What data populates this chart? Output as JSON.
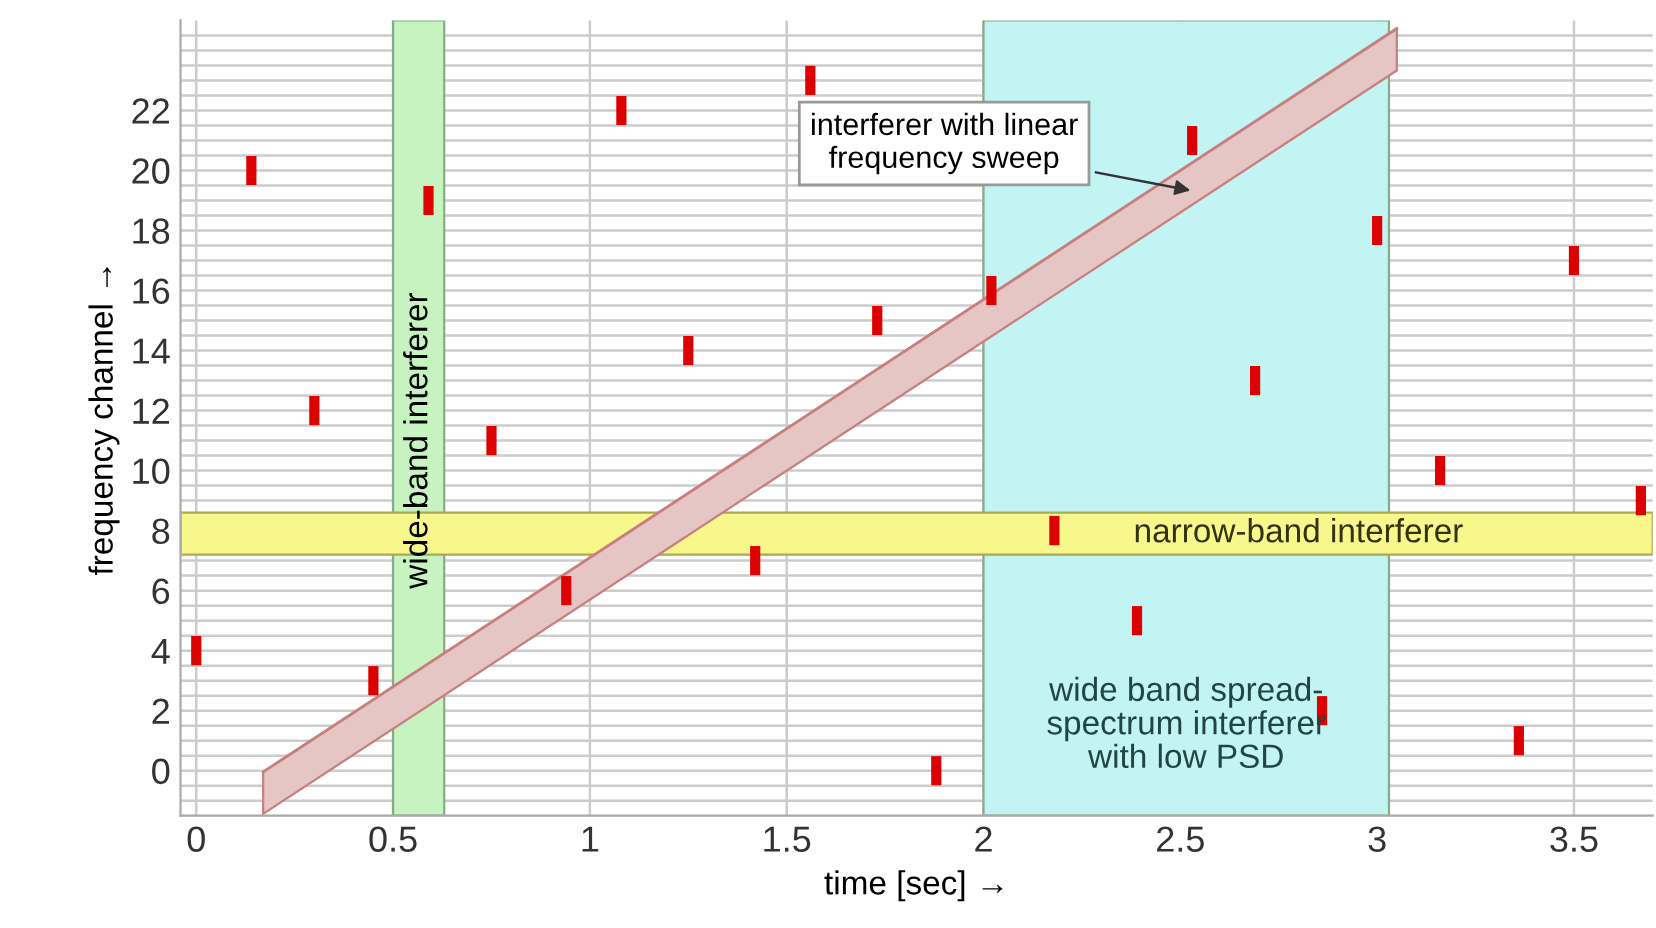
{
  "chart_data": {
    "type": "scatter",
    "xlabel": "time [sec] →",
    "ylabel": "frequency channel →",
    "series": [
      {
        "type": "line",
        "color": "#c87f7f",
        "x": [
          0.17,
          3.05
        ],
        "lower": [
          -1.44,
          23.33
        ],
        "upper": [
          -0.04,
          24.73
        ],
        "values": [
          -0.04,
          24.73
        ]
      },
      {
        "color": "#dd0000",
        "marker": "square",
        "x": [
          0,
          0.14,
          0.3,
          0.45,
          0.59,
          0.75,
          0.94,
          1.08,
          1.25,
          1.42,
          1.56,
          1.73,
          1.88,
          2.02,
          2.18,
          2.39,
          2.53,
          2.69,
          2.86,
          3.0,
          3.16,
          3.36,
          3.5,
          3.67
        ],
        "values": [
          4,
          20,
          12,
          3,
          19,
          11,
          6,
          22,
          14,
          7,
          23,
          15,
          0,
          16,
          8,
          5,
          21,
          13,
          2,
          18,
          10,
          1,
          17,
          9
        ]
      }
    ],
    "bands": [
      {
        "axis": "x",
        "from": 0.5,
        "to": 0.63,
        "label": "wide-band interferer",
        "color": "#c6f3c0"
      },
      {
        "axis": "x",
        "from": 2.0,
        "to": 3.03,
        "label": "wide band spread-\nspectrum interferer\nwith low PSD",
        "color": "#c2f4f4"
      },
      {
        "axis": "y",
        "from": 7.2,
        "to": 8.6,
        "label": "narrow-band interferer",
        "color": "#f7f78c"
      }
    ],
    "annotations": [
      {
        "text": "interferer with linear\nfrequency sweep",
        "x": 2.54,
        "y": 19.3
      }
    ],
    "xlim": [
      -0.04,
      3.7
    ],
    "ylim": [
      -1.5,
      25
    ],
    "xticks": [
      0,
      0.5,
      1,
      1.5,
      2,
      2.5,
      3,
      3.5
    ],
    "yticks": [
      {
        "value": -1,
        "label": null
      },
      {
        "value": -0.5,
        "label": null
      },
      0,
      {
        "value": 0.5,
        "label": null
      },
      {
        "value": 1,
        "label": null
      },
      {
        "value": 1.5,
        "label": null
      },
      2,
      {
        "value": 2.5,
        "label": null
      },
      {
        "value": 3,
        "label": null
      },
      {
        "value": 3.5,
        "label": null
      },
      4,
      {
        "value": 4.5,
        "label": null
      },
      {
        "value": 5,
        "label": null
      },
      {
        "value": 5.5,
        "label": null
      },
      6,
      {
        "value": 6.5,
        "label": null
      },
      {
        "value": 7,
        "label": null
      },
      {
        "value": 7.5,
        "label": null
      },
      8,
      {
        "value": 8.5,
        "label": null
      },
      {
        "value": 9,
        "label": null
      },
      {
        "value": 9.5,
        "label": null
      },
      10,
      {
        "value": 10.5,
        "label": null
      },
      {
        "value": 11,
        "label": null
      },
      {
        "value": 11.5,
        "label": null
      },
      12,
      {
        "value": 12.5,
        "label": null
      },
      {
        "value": 13,
        "label": null
      },
      {
        "value": 13.5,
        "label": null
      },
      14,
      {
        "value": 14.5,
        "label": null
      },
      {
        "value": 15,
        "label": null
      },
      {
        "value": 15.5,
        "label": null
      },
      16,
      {
        "value": 16.5,
        "label": null
      },
      {
        "value": 17,
        "label": null
      },
      {
        "value": 17.5,
        "label": null
      },
      18,
      {
        "value": 18.5,
        "label": null
      },
      {
        "value": 19,
        "label": null
      },
      {
        "value": 19.5,
        "label": null
      },
      20,
      {
        "value": 20.5,
        "label": null
      },
      {
        "value": 21,
        "label": null
      },
      {
        "value": 21.5,
        "label": null
      },
      22,
      {
        "value": 22.5,
        "label": null
      },
      {
        "value": 23,
        "label": null
      },
      {
        "value": 23.5,
        "label": null
      },
      {
        "value": 24,
        "label": null
      },
      {
        "value": 24.5,
        "label": null
      }
    ],
    "grid": true
  }
}
